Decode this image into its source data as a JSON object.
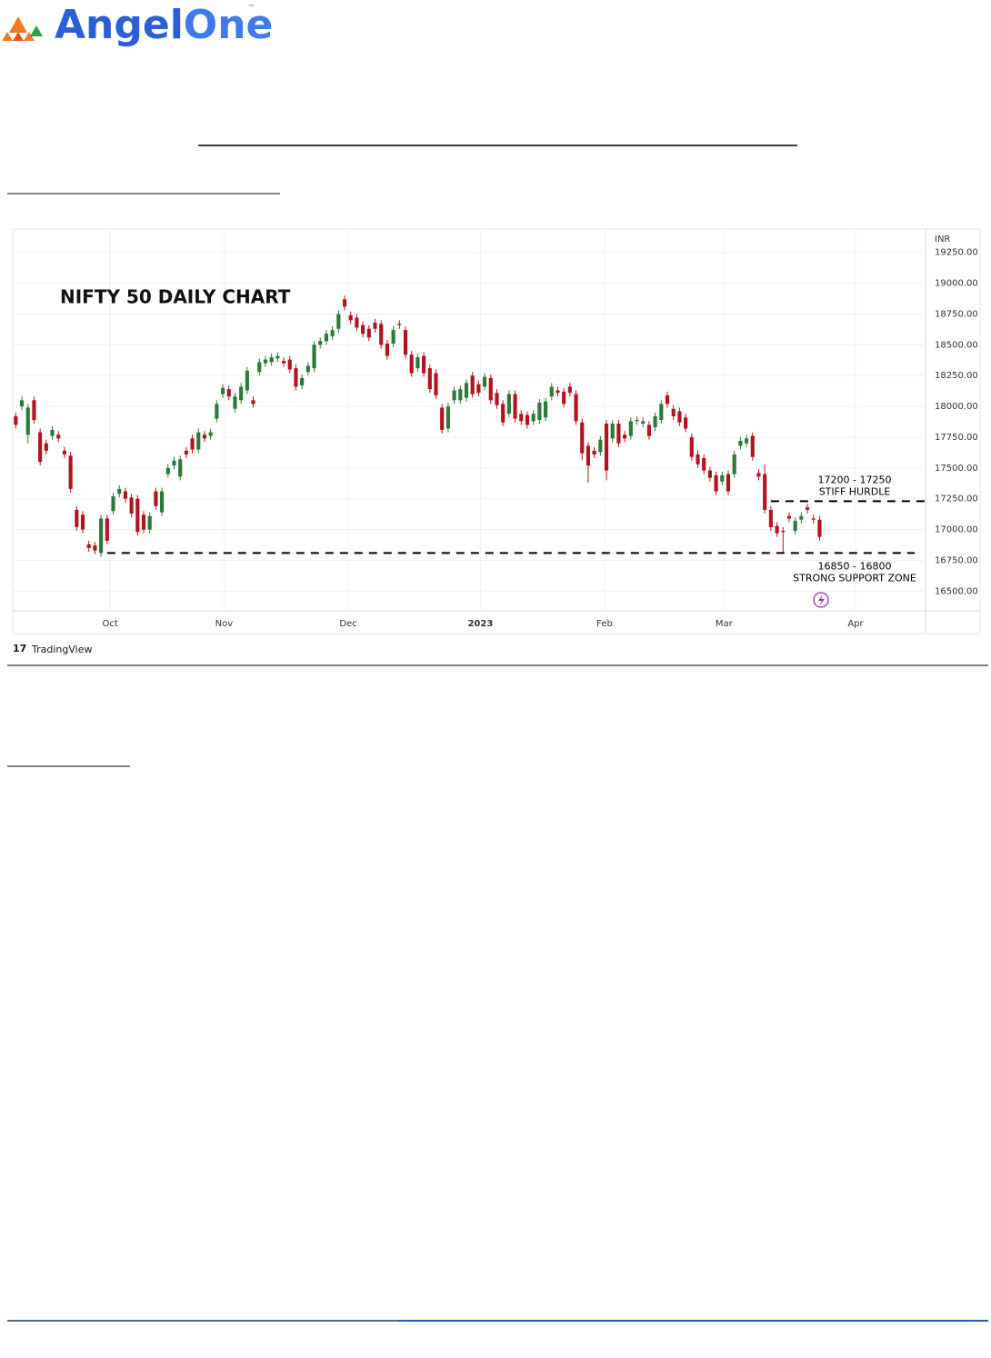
{
  "header": {
    "brand": [
      "Angel",
      "One"
    ],
    "trademark": "™"
  },
  "chart_data": {
    "type": "candlestick",
    "title": "NIFTY 50 DAILY CHART",
    "axis_unit": "INR",
    "source": "TradingView",
    "up_color": "#2b7a3a",
    "down_color": "#b3131f",
    "grid": true,
    "xlim": [
      -0.5,
      149.4
    ],
    "xticks": [
      {
        "value": 15.5,
        "label": "Oct"
      },
      {
        "value": 34.2,
        "label": "Nov"
      },
      {
        "value": 54.6,
        "label": "Dec"
      },
      {
        "value": 76.3,
        "label": "2023"
      },
      {
        "value": 96.7,
        "label": "Feb"
      },
      {
        "value": 116.3,
        "label": "Mar"
      },
      {
        "value": 137.9,
        "label": "Apr"
      }
    ],
    "ylim": [
      16340,
      19440
    ],
    "yticks": [
      {
        "value": 16500,
        "label": "16500.00"
      },
      {
        "value": 16750,
        "label": "16750.00"
      },
      {
        "value": 17000,
        "label": "17000.00"
      },
      {
        "value": 17250,
        "label": "17250.00"
      },
      {
        "value": 17500,
        "label": "17500.00"
      },
      {
        "value": 17750,
        "label": "17750.00"
      },
      {
        "value": 18000,
        "label": "18000.00"
      },
      {
        "value": 18250,
        "label": "18250.00"
      },
      {
        "value": 18500,
        "label": "18500.00"
      },
      {
        "value": 18750,
        "label": "18750.00"
      },
      {
        "value": 19000,
        "label": "19000.00"
      },
      {
        "value": 19250,
        "label": "19250.00"
      }
    ],
    "open": [
      17920,
      18000,
      17770,
      18050,
      17790,
      17700,
      17760,
      17770,
      17640,
      17600,
      17160,
      17120,
      16880,
      16870,
      16810,
      17090,
      17150,
      17290,
      17310,
      17260,
      17250,
      17120,
      17000,
      17310,
      17140,
      17450,
      17520,
      17430,
      17640,
      17740,
      17650,
      17770,
      17760,
      17900,
      18100,
      18140,
      17980,
      18050,
      18130,
      18050,
      18280,
      18350,
      18360,
      18390,
      18370,
      18380,
      18310,
      18170,
      18280,
      18310,
      18500,
      18530,
      18570,
      18630,
      18870,
      18740,
      18720,
      18660,
      18630,
      18680,
      18670,
      18510,
      18510,
      18670,
      18620,
      18420,
      18310,
      18410,
      18310,
      18270,
      17990,
      17820,
      18050,
      18050,
      18070,
      18250,
      18180,
      18160,
      18230,
      18110,
      18020,
      17940,
      18100,
      17940,
      17930,
      17880,
      17890,
      17910,
      18080,
      18130,
      18120,
      18160,
      18100,
      17870,
      17680,
      17640,
      17630,
      17860,
      17740,
      17860,
      17770,
      17760,
      17880,
      17860,
      17850,
      17830,
      17890,
      18090,
      17980,
      17960,
      17910,
      17750,
      17610,
      17580,
      17480,
      17440,
      17390,
      17450,
      17450,
      17680,
      17700,
      17760,
      17460,
      17450,
      17160,
      17030,
      16990,
      17110,
      16990,
      17080,
      17180,
      17090,
      17080
    ],
    "high": [
      17950,
      18080,
      18020,
      18080,
      17820,
      17730,
      17840,
      17800,
      17670,
      17630,
      17190,
      17150,
      16910,
      16900,
      17120,
      17120,
      17300,
      17360,
      17340,
      17290,
      17280,
      17150,
      17140,
      17340,
      17340,
      17530,
      17590,
      17600,
      17670,
      17770,
      17820,
      17800,
      17820,
      18050,
      18180,
      18170,
      18110,
      18190,
      18320,
      18080,
      18390,
      18410,
      18430,
      18440,
      18400,
      18410,
      18340,
      18260,
      18360,
      18530,
      18560,
      18620,
      18650,
      18780,
      18900,
      18770,
      18750,
      18690,
      18660,
      18710,
      18700,
      18540,
      18650,
      18700,
      18650,
      18450,
      18430,
      18440,
      18340,
      18300,
      18020,
      18030,
      18160,
      18170,
      18220,
      18280,
      18210,
      18270,
      18260,
      18140,
      18050,
      18130,
      18130,
      17970,
      17960,
      17970,
      18060,
      18070,
      18190,
      18160,
      18150,
      18190,
      18130,
      17900,
      17710,
      17670,
      17760,
      17890,
      17890,
      17890,
      17800,
      17910,
      17920,
      17910,
      17880,
      17950,
      18050,
      18120,
      18010,
      17990,
      17940,
      17780,
      17640,
      17610,
      17510,
      17470,
      17470,
      17480,
      17640,
      17750,
      17770,
      17790,
      17490,
      17530,
      17190,
      17060,
      17020,
      17140,
      17100,
      17140,
      17210,
      17120,
      17110
    ],
    "low": [
      17820,
      17970,
      17700,
      17860,
      17520,
      17610,
      17730,
      17710,
      17580,
      17300,
      16990,
      16970,
      16820,
      16800,
      16780,
      16880,
      17120,
      17260,
      17220,
      17100,
      16950,
      16970,
      16970,
      17160,
      17110,
      17420,
      17490,
      17400,
      17580,
      17620,
      17620,
      17710,
      17730,
      17870,
      18070,
      18050,
      17950,
      18020,
      18100,
      17990,
      18250,
      18320,
      18330,
      18360,
      18320,
      18270,
      18130,
      18140,
      18250,
      18280,
      18470,
      18500,
      18540,
      18600,
      18780,
      18670,
      18610,
      18560,
      18530,
      18600,
      18470,
      18380,
      18480,
      18630,
      18390,
      18240,
      18280,
      18240,
      18110,
      18060,
      17780,
      17790,
      18020,
      18020,
      18040,
      18070,
      18080,
      18130,
      18020,
      17980,
      17840,
      17910,
      17870,
      17850,
      17820,
      17850,
      17860,
      17880,
      18050,
      18080,
      17990,
      18080,
      17850,
      17560,
      17380,
      17580,
      17600,
      17400,
      17710,
      17670,
      17710,
      17730,
      17850,
      17830,
      17730,
      17800,
      17860,
      17990,
      17890,
      17840,
      17790,
      17560,
      17500,
      17450,
      17390,
      17280,
      17360,
      17280,
      17420,
      17650,
      17670,
      17560,
      17400,
      17130,
      16990,
      16940,
      16810,
      17060,
      16960,
      17050,
      17130,
      17050,
      16910
    ],
    "close": [
      17850,
      18050,
      17990,
      17890,
      17550,
      17640,
      17810,
      17740,
      17610,
      17330,
      17020,
      17000,
      16850,
      16830,
      17090,
      16910,
      17270,
      17330,
      17250,
      17130,
      16980,
      17000,
      17110,
      17190,
      17310,
      17500,
      17560,
      17570,
      17610,
      17650,
      17790,
      17740,
      17790,
      18020,
      18150,
      18080,
      18080,
      18160,
      18290,
      18020,
      18360,
      18380,
      18400,
      18410,
      18350,
      18300,
      18160,
      18230,
      18330,
      18500,
      18530,
      18590,
      18620,
      18750,
      18810,
      18700,
      18640,
      18590,
      18560,
      18630,
      18500,
      18410,
      18620,
      18660,
      18420,
      18270,
      18400,
      18270,
      18140,
      18090,
      17810,
      18000,
      18130,
      18140,
      18190,
      18100,
      18110,
      18240,
      18050,
      18010,
      17870,
      18100,
      17900,
      17880,
      17850,
      17940,
      18030,
      18040,
      18160,
      18110,
      18020,
      18110,
      17880,
      17620,
      17520,
      17610,
      17730,
      17480,
      17860,
      17700,
      17740,
      17880,
      17890,
      17880,
      17760,
      17920,
      18020,
      18020,
      17920,
      17870,
      17820,
      17590,
      17530,
      17480,
      17420,
      17310,
      17440,
      17310,
      17610,
      17720,
      17740,
      17590,
      17430,
      17160,
      17020,
      16970,
      16980,
      17090,
      17070,
      17110,
      17160,
      17080,
      16940
    ],
    "levels": [
      {
        "value": 17230,
        "from": 124,
        "label": "17200 - 17250",
        "note": "STIFF HURDLE"
      },
      {
        "value": 16810,
        "from": 15,
        "label": "16850 - 16800",
        "note": "STRONG SUPPORT ZONE"
      }
    ]
  }
}
